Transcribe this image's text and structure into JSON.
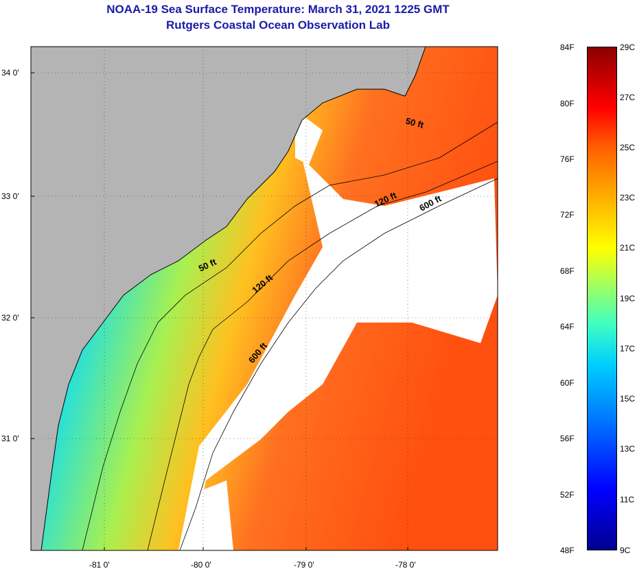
{
  "header": {
    "title": "NOAA-19 Sea Surface Temperature:  March 31, 2021 1225 GMT",
    "subtitle": "Rutgers Coastal Ocean Observation Lab"
  },
  "map": {
    "longitude_labels": [
      "-81 0'",
      "-80 0'",
      "-79 0'",
      "-78 0'"
    ],
    "latitude_labels": [
      "34 0'",
      "33 0'",
      "32 0'",
      "31 0'"
    ],
    "contour_labels": [
      "50 ft",
      "120 ft",
      "600 ft",
      "50 ft",
      "120 ft",
      "600 ft"
    ],
    "colors": {
      "land": "#b4b4b4",
      "no_data": "#ffffff",
      "coastline": "#000000"
    }
  },
  "colorbar": {
    "fahrenheit_labels": [
      "84F",
      "80F",
      "76F",
      "72F",
      "68F",
      "64F",
      "60F",
      "56F",
      "52F",
      "48F"
    ],
    "celsius_labels": [
      "29C",
      "27C",
      "25C",
      "23C",
      "21C",
      "19C",
      "17C",
      "15C",
      "13C",
      "11C",
      "9C"
    ],
    "colors": [
      "#00008f",
      "#0000ff",
      "#0070ff",
      "#00d0ff",
      "#40ffc0",
      "#c0ff40",
      "#ffff00",
      "#ffb000",
      "#ff6000",
      "#ff0000",
      "#8b0000"
    ]
  }
}
